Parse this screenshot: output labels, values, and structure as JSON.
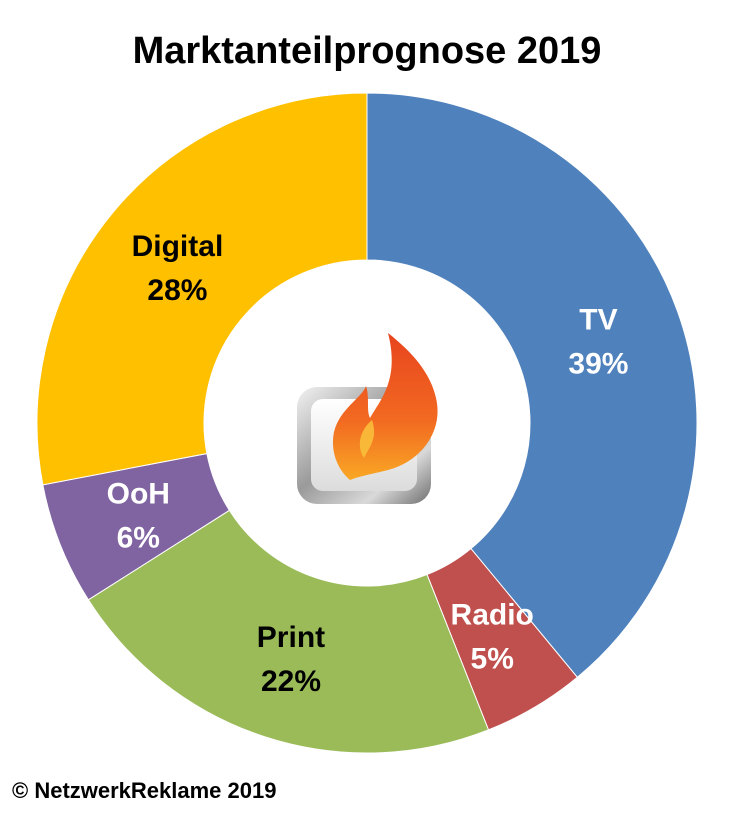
{
  "chart_data": {
    "type": "pie",
    "variant": "donut",
    "title": "Marktanteilprognose 2019",
    "categories": [
      "TV",
      "Radio",
      "Print",
      "OoH",
      "Digital"
    ],
    "values": [
      39,
      5,
      22,
      6,
      28
    ],
    "value_labels": [
      "39%",
      "5%",
      "22%",
      "6%",
      "28%"
    ],
    "colors": [
      "#4F81BD",
      "#C0504D",
      "#9BBB59",
      "#8064A2",
      "#FFC000"
    ],
    "label_colors": [
      "#ffffff",
      "#ffffff",
      "#000000",
      "#ffffff",
      "#000000"
    ],
    "start_angle_deg": 0,
    "direction": "clockwise",
    "legend": "none",
    "center_icon": "flame-logo-icon"
  },
  "footer": {
    "copyright": "© NetzwerkReklame 2019"
  }
}
